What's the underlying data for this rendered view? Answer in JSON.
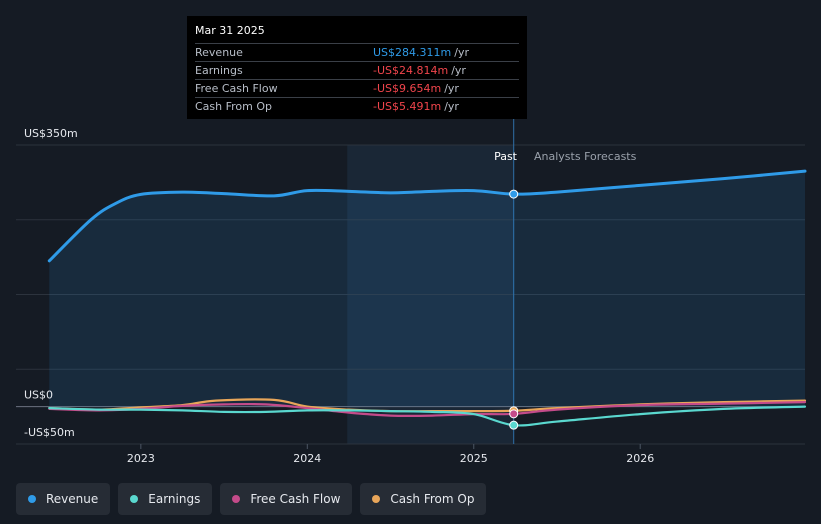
{
  "tooltip": {
    "date": "Mar 31 2025",
    "rows": [
      {
        "label": "Revenue",
        "value": "US$284.311m",
        "unit": "/yr",
        "color": "#2f9be8"
      },
      {
        "label": "Earnings",
        "value": "-US$24.814m",
        "unit": "/yr",
        "color": "#f1454c"
      },
      {
        "label": "Free Cash Flow",
        "value": "-US$9.654m",
        "unit": "/yr",
        "color": "#f1454c"
      },
      {
        "label": "Cash From Op",
        "value": "-US$5.491m",
        "unit": "/yr",
        "color": "#f1454c"
      }
    ]
  },
  "legend": [
    {
      "label": "Revenue",
      "color": "#2f9be8"
    },
    {
      "label": "Earnings",
      "color": "#5ad8cf"
    },
    {
      "label": "Free Cash Flow",
      "color": "#c44b8a"
    },
    {
      "label": "Cash From Op",
      "color": "#e8a65a"
    }
  ],
  "chart_data": {
    "type": "line",
    "y_tick_labels": [
      {
        "value": 350,
        "label": "US$350m"
      },
      {
        "value": 0,
        "label": "US$0"
      },
      {
        "value": -50,
        "label": "-US$50m"
      }
    ],
    "ylim": [
      -50,
      350
    ],
    "x_ticks": [
      2023,
      2024,
      2025,
      2026
    ],
    "xlim": [
      2022.25,
      2026.99
    ],
    "past_label": "Past",
    "forecast_label": "Analysts Forecasts",
    "forecast_start": 2025.24,
    "shaded_region_start": 2024.24,
    "grid": true,
    "series": [
      {
        "name": "Revenue",
        "color": "#2f9be8",
        "fill": true,
        "points": [
          [
            2022.45,
            195
          ],
          [
            2022.7,
            250
          ],
          [
            2022.85,
            272
          ],
          [
            2023.0,
            284
          ],
          [
            2023.25,
            287
          ],
          [
            2023.5,
            285
          ],
          [
            2023.8,
            282
          ],
          [
            2024.0,
            289
          ],
          [
            2024.25,
            288
          ],
          [
            2024.5,
            286
          ],
          [
            2024.75,
            288
          ],
          [
            2025.0,
            289
          ],
          [
            2025.24,
            284.3
          ],
          [
            2025.5,
            287
          ],
          [
            2026.0,
            296
          ],
          [
            2026.5,
            305
          ],
          [
            2026.99,
            315
          ]
        ]
      },
      {
        "name": "Earnings",
        "color": "#5ad8cf",
        "fill": false,
        "points": [
          [
            2022.45,
            -2
          ],
          [
            2022.75,
            -4
          ],
          [
            2023.0,
            -4
          ],
          [
            2023.25,
            -5
          ],
          [
            2023.5,
            -7
          ],
          [
            2023.75,
            -7
          ],
          [
            2024.0,
            -5
          ],
          [
            2024.25,
            -5
          ],
          [
            2024.5,
            -6
          ],
          [
            2024.75,
            -7
          ],
          [
            2025.0,
            -10
          ],
          [
            2025.24,
            -24.8
          ],
          [
            2025.5,
            -20
          ],
          [
            2026.0,
            -10
          ],
          [
            2026.5,
            -3
          ],
          [
            2026.99,
            0
          ]
        ]
      },
      {
        "name": "Free Cash Flow",
        "color": "#c44b8a",
        "fill": false,
        "points": [
          [
            2022.45,
            -3
          ],
          [
            2022.75,
            -5
          ],
          [
            2023.0,
            -3
          ],
          [
            2023.25,
            1
          ],
          [
            2023.5,
            3
          ],
          [
            2023.75,
            3
          ],
          [
            2024.0,
            -2
          ],
          [
            2024.25,
            -8
          ],
          [
            2024.5,
            -12
          ],
          [
            2024.75,
            -12
          ],
          [
            2025.0,
            -10
          ],
          [
            2025.24,
            -9.7
          ],
          [
            2025.5,
            -4
          ],
          [
            2026.0,
            2
          ],
          [
            2026.5,
            4
          ],
          [
            2026.99,
            6
          ]
        ]
      },
      {
        "name": "Cash From Op",
        "color": "#e8a65a",
        "fill": false,
        "points": [
          [
            2022.45,
            -2
          ],
          [
            2022.75,
            -4
          ],
          [
            2023.0,
            -1
          ],
          [
            2023.25,
            2
          ],
          [
            2023.45,
            8
          ],
          [
            2023.8,
            9
          ],
          [
            2024.0,
            0
          ],
          [
            2024.25,
            -4
          ],
          [
            2024.5,
            -6
          ],
          [
            2024.75,
            -6
          ],
          [
            2025.0,
            -6
          ],
          [
            2025.24,
            -5.5
          ],
          [
            2025.5,
            -2
          ],
          [
            2026.0,
            3
          ],
          [
            2026.5,
            6
          ],
          [
            2026.99,
            8
          ]
        ]
      }
    ]
  }
}
